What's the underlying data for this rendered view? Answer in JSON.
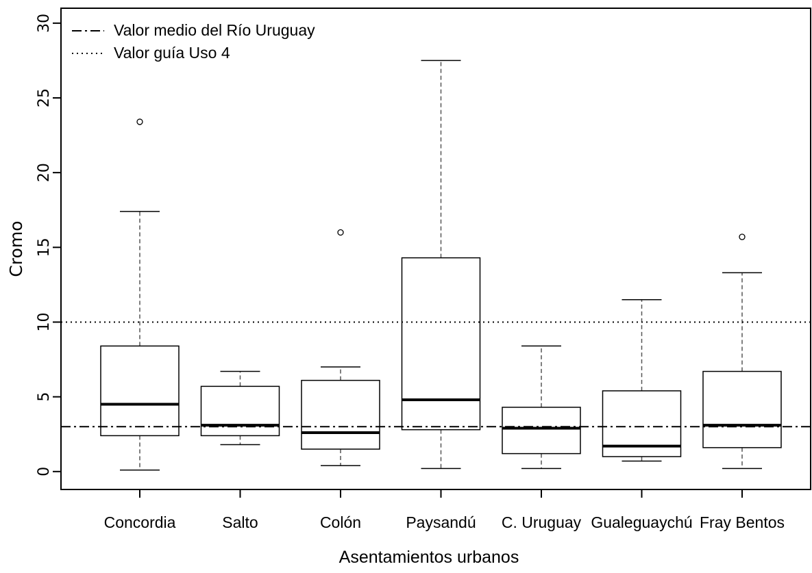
{
  "chart_data": {
    "type": "boxplot",
    "xlabel": "Asentamientos urbanos",
    "ylabel": "Cromo",
    "ylim": [
      -1.2,
      31
    ],
    "yticks": [
      0,
      5,
      10,
      15,
      20,
      25,
      30
    ],
    "categories": [
      "Concordia",
      "Salto",
      "Colón",
      "Paysandú",
      "C. Uruguay",
      "Gualeguaychú",
      "Fray Bentos"
    ],
    "boxes": [
      {
        "min": 0.1,
        "q1": 2.4,
        "median": 4.5,
        "q3": 8.4,
        "max": 17.4,
        "outliers": [
          23.4
        ]
      },
      {
        "min": 1.8,
        "q1": 2.4,
        "median": 3.1,
        "q3": 5.7,
        "max": 6.7,
        "outliers": []
      },
      {
        "min": 0.4,
        "q1": 1.5,
        "median": 2.6,
        "q3": 6.1,
        "max": 7.0,
        "outliers": [
          16.0
        ]
      },
      {
        "min": 0.2,
        "q1": 2.8,
        "median": 4.8,
        "q3": 14.3,
        "max": 27.5,
        "outliers": []
      },
      {
        "min": 0.2,
        "q1": 1.2,
        "median": 2.9,
        "q3": 4.3,
        "max": 8.4,
        "outliers": []
      },
      {
        "min": 0.7,
        "q1": 1.0,
        "median": 1.7,
        "q3": 5.4,
        "max": 11.5,
        "outliers": []
      },
      {
        "min": 0.2,
        "q1": 1.6,
        "median": 3.1,
        "q3": 6.7,
        "max": 13.3,
        "outliers": [
          15.7
        ]
      }
    ],
    "reference_lines": [
      {
        "name": "Valor medio del Río Uruguay",
        "value": 3.0,
        "style": "dashdot"
      },
      {
        "name": "Valor guía Uso 4",
        "value": 10.0,
        "style": "dotted"
      }
    ],
    "legend": {
      "position": "top-left"
    },
    "grid": false
  }
}
